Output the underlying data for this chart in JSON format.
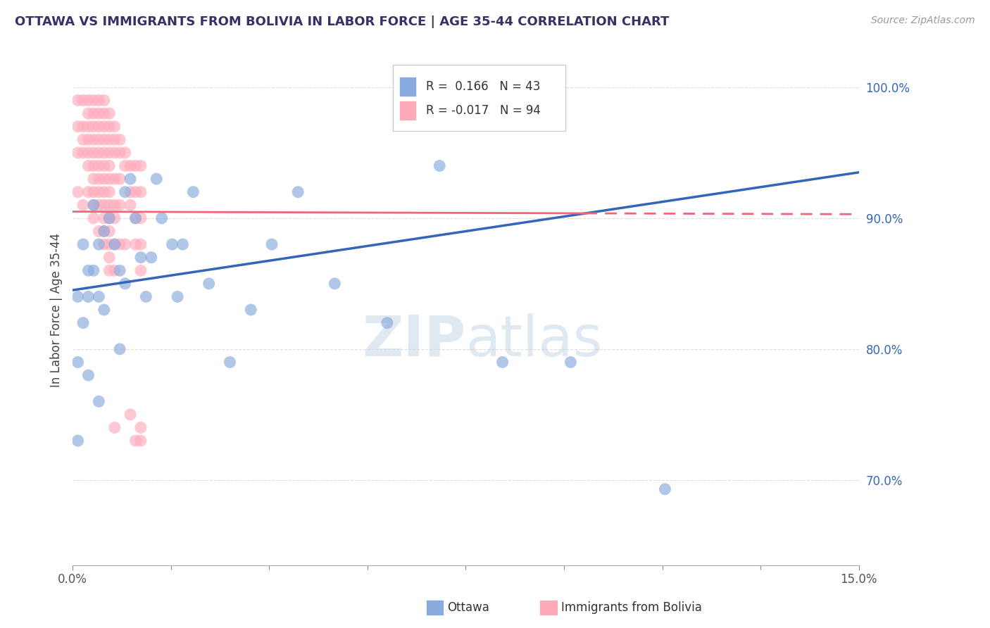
{
  "title": "OTTAWA VS IMMIGRANTS FROM BOLIVIA IN LABOR FORCE | AGE 35-44 CORRELATION CHART",
  "source": "Source: ZipAtlas.com",
  "ylabel": "In Labor Force | Age 35-44",
  "xlim": [
    0.0,
    0.15
  ],
  "ylim": [
    0.635,
    1.025
  ],
  "xtick_labels": [
    "0.0%",
    "15.0%"
  ],
  "ytick_positions": [
    0.7,
    0.8,
    0.9,
    1.0
  ],
  "ytick_labels": [
    "70.0%",
    "80.0%",
    "90.0%",
    "100.0%"
  ],
  "grid_color": "#dddddd",
  "background_color": "#ffffff",
  "watermark_zip": "ZIP",
  "watermark_atlas": "atlas",
  "legend_R_blue": "0.166",
  "legend_N_blue": "43",
  "legend_R_pink": "-0.017",
  "legend_N_pink": "94",
  "blue_color": "#88aadd",
  "pink_color": "#ffaabb",
  "blue_line_color": "#3366bb",
  "pink_line_color": "#ee6677",
  "title_color": "#333366",
  "label_color": "#3366bb",
  "ottawa_x": [
    0.001,
    0.001,
    0.001,
    0.002,
    0.002,
    0.003,
    0.003,
    0.003,
    0.004,
    0.004,
    0.005,
    0.005,
    0.005,
    0.006,
    0.006,
    0.007,
    0.008,
    0.009,
    0.009,
    0.01,
    0.01,
    0.011,
    0.012,
    0.013,
    0.014,
    0.015,
    0.016,
    0.017,
    0.019,
    0.02,
    0.021,
    0.023,
    0.026,
    0.03,
    0.034,
    0.038,
    0.043,
    0.05,
    0.06,
    0.07,
    0.082,
    0.095,
    0.113
  ],
  "ottawa_y": [
    0.84,
    0.79,
    0.73,
    0.88,
    0.82,
    0.86,
    0.84,
    0.78,
    0.91,
    0.86,
    0.88,
    0.84,
    0.76,
    0.89,
    0.83,
    0.9,
    0.88,
    0.86,
    0.8,
    0.92,
    0.85,
    0.93,
    0.9,
    0.87,
    0.84,
    0.87,
    0.93,
    0.9,
    0.88,
    0.84,
    0.88,
    0.92,
    0.85,
    0.79,
    0.83,
    0.88,
    0.92,
    0.85,
    0.82,
    0.94,
    0.79,
    0.79,
    0.693
  ],
  "bolivia_x": [
    0.001,
    0.001,
    0.001,
    0.001,
    0.002,
    0.002,
    0.002,
    0.002,
    0.002,
    0.003,
    0.003,
    0.003,
    0.003,
    0.003,
    0.003,
    0.003,
    0.004,
    0.004,
    0.004,
    0.004,
    0.004,
    0.004,
    0.004,
    0.004,
    0.004,
    0.004,
    0.005,
    0.005,
    0.005,
    0.005,
    0.005,
    0.005,
    0.005,
    0.005,
    0.005,
    0.005,
    0.006,
    0.006,
    0.006,
    0.006,
    0.006,
    0.006,
    0.006,
    0.006,
    0.006,
    0.006,
    0.006,
    0.006,
    0.007,
    0.007,
    0.007,
    0.007,
    0.007,
    0.007,
    0.007,
    0.007,
    0.007,
    0.007,
    0.007,
    0.007,
    0.007,
    0.008,
    0.008,
    0.008,
    0.008,
    0.008,
    0.008,
    0.008,
    0.008,
    0.008,
    0.009,
    0.009,
    0.009,
    0.009,
    0.009,
    0.01,
    0.01,
    0.01,
    0.011,
    0.011,
    0.011,
    0.011,
    0.012,
    0.012,
    0.012,
    0.012,
    0.012,
    0.013,
    0.013,
    0.013,
    0.013,
    0.013,
    0.013,
    0.013
  ],
  "bolivia_y": [
    0.99,
    0.97,
    0.95,
    0.92,
    0.99,
    0.97,
    0.96,
    0.95,
    0.91,
    0.99,
    0.98,
    0.97,
    0.96,
    0.95,
    0.94,
    0.92,
    0.99,
    0.98,
    0.97,
    0.96,
    0.95,
    0.94,
    0.93,
    0.92,
    0.91,
    0.9,
    0.99,
    0.98,
    0.97,
    0.96,
    0.95,
    0.94,
    0.93,
    0.92,
    0.91,
    0.89,
    0.99,
    0.98,
    0.97,
    0.96,
    0.95,
    0.94,
    0.93,
    0.92,
    0.91,
    0.9,
    0.89,
    0.88,
    0.98,
    0.97,
    0.96,
    0.95,
    0.94,
    0.93,
    0.92,
    0.91,
    0.9,
    0.89,
    0.88,
    0.87,
    0.86,
    0.97,
    0.96,
    0.95,
    0.93,
    0.91,
    0.9,
    0.88,
    0.86,
    0.74,
    0.96,
    0.95,
    0.93,
    0.91,
    0.88,
    0.95,
    0.94,
    0.88,
    0.94,
    0.92,
    0.91,
    0.75,
    0.94,
    0.92,
    0.9,
    0.88,
    0.73,
    0.94,
    0.92,
    0.9,
    0.88,
    0.86,
    0.74,
    0.73
  ]
}
